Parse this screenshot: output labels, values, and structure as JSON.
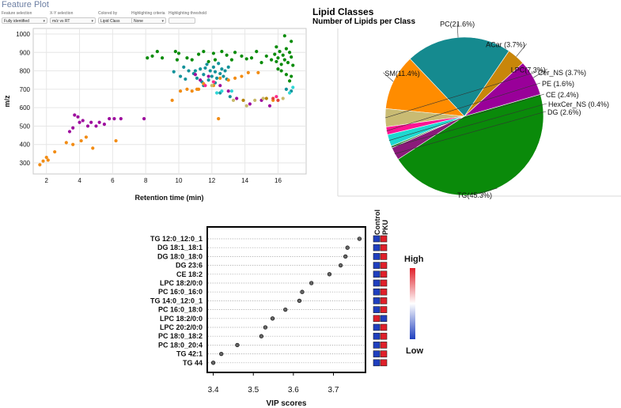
{
  "feature_plot": {
    "title": "Feature Plot",
    "controls": [
      {
        "label": "Feature selection",
        "value": "Fully identified"
      },
      {
        "label": "X-Y selection",
        "value": "m/z vs RT"
      },
      {
        "label": "Colored by",
        "value": "Lipid Class"
      },
      {
        "label": "Highlighting criteria",
        "value": "None"
      },
      {
        "label": "Highlighting threshold",
        "value": ""
      }
    ]
  },
  "chart_data": [
    {
      "type": "scatter",
      "title": "",
      "xlabel": "Retention time (min)",
      "ylabel": "m/z",
      "xlim": [
        1.2,
        17.7
      ],
      "ylim": [
        240,
        1030
      ],
      "xticks": [
        2,
        4,
        6,
        8,
        10,
        12,
        14,
        16
      ],
      "yticks": [
        300,
        400,
        500,
        600,
        700,
        800,
        900,
        1000
      ],
      "grid": true,
      "series": [
        {
          "name": "TG",
          "color": "#0a8c0a",
          "points": [
            [
              8.1,
              870
            ],
            [
              8.4,
              880
            ],
            [
              8.7,
              905
            ],
            [
              9.0,
              870
            ],
            [
              9.8,
              905
            ],
            [
              9.9,
              860
            ],
            [
              10.0,
              895
            ],
            [
              10.5,
              870
            ],
            [
              10.8,
              860
            ],
            [
              11.2,
              890
            ],
            [
              11.5,
              905
            ],
            [
              11.8,
              850
            ],
            [
              12.1,
              895
            ],
            [
              12.2,
              860
            ],
            [
              12.6,
              905
            ],
            [
              12.9,
              885
            ],
            [
              13.2,
              860
            ],
            [
              13.4,
              900
            ],
            [
              13.8,
              880
            ],
            [
              14.1,
              865
            ],
            [
              14.4,
              870
            ],
            [
              14.7,
              905
            ],
            [
              15.0,
              845
            ],
            [
              15.3,
              880
            ],
            [
              15.6,
              860
            ],
            [
              15.8,
              890
            ],
            [
              15.9,
              850
            ],
            [
              16.0,
              870
            ],
            [
              16.1,
              905
            ],
            [
              16.2,
              835
            ],
            [
              16.3,
              885
            ],
            [
              16.4,
              860
            ],
            [
              16.5,
              920
            ],
            [
              16.6,
              845
            ],
            [
              16.7,
              900
            ],
            [
              16.8,
              875
            ],
            [
              15.9,
              930
            ],
            [
              16.2,
              800
            ],
            [
              16.5,
              780
            ],
            [
              16.8,
              960
            ],
            [
              16.9,
              830
            ],
            [
              16.4,
              990
            ],
            [
              16.0,
              810
            ],
            [
              16.7,
              745
            ],
            [
              16.8,
              770
            ]
          ]
        },
        {
          "name": "PC",
          "color": "#13929a",
          "points": [
            [
              9.7,
              795
            ],
            [
              10.1,
              770
            ],
            [
              10.6,
              800
            ],
            [
              10.9,
              785
            ],
            [
              11.1,
              760
            ],
            [
              11.3,
              810
            ],
            [
              11.5,
              780
            ],
            [
              11.7,
              835
            ],
            [
              11.8,
              750
            ],
            [
              11.9,
              800
            ],
            [
              12.0,
              770
            ],
            [
              12.1,
              820
            ],
            [
              12.2,
              795
            ],
            [
              12.3,
              760
            ],
            [
              12.4,
              840
            ],
            [
              12.5,
              785
            ],
            [
              12.6,
              810
            ],
            [
              12.7,
              770
            ],
            [
              12.8,
              800
            ],
            [
              13.0,
              820
            ],
            [
              11.6,
              815
            ],
            [
              11.4,
              740
            ],
            [
              12.9,
              755
            ],
            [
              11.0,
              800
            ],
            [
              10.4,
              755
            ],
            [
              10.3,
              820
            ],
            [
              12.2,
              735
            ],
            [
              11.5,
              720
            ],
            [
              16.5,
              700
            ],
            [
              16.8,
              690
            ],
            [
              12.5,
              680
            ],
            [
              13.1,
              660
            ]
          ]
        },
        {
          "name": "SM",
          "color": "#f28c14",
          "points": [
            [
              1.6,
              290
            ],
            [
              1.8,
              310
            ],
            [
              2.0,
              330
            ],
            [
              2.1,
              315
            ],
            [
              2.5,
              360
            ],
            [
              3.2,
              410
            ],
            [
              3.6,
              400
            ],
            [
              4.1,
              420
            ],
            [
              4.4,
              440
            ],
            [
              4.8,
              380
            ],
            [
              6.2,
              420
            ],
            [
              9.6,
              640
            ],
            [
              10.1,
              690
            ],
            [
              10.5,
              700
            ],
            [
              10.8,
              690
            ],
            [
              11.2,
              700
            ],
            [
              11.5,
              730
            ],
            [
              12.1,
              720
            ],
            [
              12.5,
              760
            ],
            [
              13.0,
              750
            ],
            [
              13.4,
              760
            ],
            [
              13.8,
              770
            ],
            [
              14.2,
              790
            ],
            [
              14.8,
              790
            ],
            [
              12.4,
              540
            ],
            [
              15.7,
              640
            ],
            [
              11.1,
              700
            ]
          ]
        },
        {
          "name": "LPC",
          "color": "#9e0e9e",
          "points": [
            [
              3.4,
              470
            ],
            [
              3.6,
              490
            ],
            [
              3.7,
              560
            ],
            [
              3.9,
              550
            ],
            [
              4.0,
              520
            ],
            [
              4.2,
              530
            ],
            [
              4.5,
              500
            ],
            [
              4.7,
              520
            ],
            [
              5.0,
              500
            ],
            [
              5.2,
              520
            ],
            [
              5.5,
              510
            ],
            [
              5.8,
              540
            ],
            [
              6.1,
              540
            ],
            [
              6.5,
              540
            ],
            [
              7.9,
              540
            ],
            [
              11.0,
              780
            ],
            [
              11.3,
              750
            ],
            [
              12.5,
              720
            ],
            [
              13.0,
              690
            ],
            [
              13.5,
              650
            ],
            [
              14.3,
              620
            ],
            [
              15.5,
              610
            ],
            [
              11.8,
              770
            ],
            [
              15.0,
              640
            ]
          ]
        },
        {
          "name": "Cer_NS",
          "color": "#c8b96a",
          "points": [
            [
              13.3,
              640
            ],
            [
              14.6,
              640
            ],
            [
              15.1,
              650
            ],
            [
              16.3,
              650
            ],
            [
              12.0,
              720
            ],
            [
              14.1,
              610
            ]
          ]
        },
        {
          "name": "ACar",
          "color": "#b8860b",
          "points": [
            [
              13.9,
              640
            ],
            [
              15.3,
              650
            ]
          ]
        },
        {
          "name": "CE",
          "color": "#30d6d6",
          "points": [
            [
              12.3,
              680
            ],
            [
              12.6,
              690
            ],
            [
              16.7,
              680
            ],
            [
              16.9,
              710
            ],
            [
              13.2,
              690
            ]
          ]
        },
        {
          "name": "PE",
          "color": "#ff2a8a",
          "points": [
            [
              11.6,
              720
            ],
            [
              12.1,
              740
            ],
            [
              15.9,
              660
            ]
          ]
        },
        {
          "name": "HexCer_NS",
          "color": "#e5413a",
          "points": [
            [
              16.0,
              640
            ],
            [
              15.7,
              650
            ]
          ]
        }
      ]
    },
    {
      "type": "pie",
      "title": "Lipid Classes",
      "subtitle": "Number of Lipids per Class",
      "slices": [
        {
          "label": "TG(45.3%)",
          "value": 45.3,
          "color": "#0a8a0a",
          "place": "bottom"
        },
        {
          "label": "LPC(7.3%)",
          "value": 7.3,
          "color": "#990099",
          "place": "left"
        },
        {
          "label": "ACar (3.7%)",
          "value": 3.7,
          "color": "#c8860a",
          "place": "left"
        },
        {
          "label": "PC(21.6%)",
          "value": 21.6,
          "color": "#158a8f",
          "place": "top"
        },
        {
          "label": "SM(11.4%)",
          "value": 11.4,
          "color": "#ff8c00",
          "place": "top-right"
        },
        {
          "label": "Cer_NS (3.7%)",
          "value": 3.7,
          "color": "#c9bb73",
          "place": "right"
        },
        {
          "label": "PE (1.6%)",
          "value": 1.6,
          "color": "#ff1493",
          "place": "right"
        },
        {
          "label": "CE (2.4%)",
          "value": 2.4,
          "color": "#1fd8d0",
          "place": "right"
        },
        {
          "label": "HexCer_NS (0.4%)",
          "value": 0.4,
          "color": "#3c8c3c",
          "place": "right"
        },
        {
          "label": "DG (2.6%)",
          "value": 2.6,
          "color": "#8b1a7a",
          "place": "right"
        }
      ]
    },
    {
      "type": "scatter",
      "title": "",
      "xlabel": "VIP scores",
      "ylabel": "",
      "xlim": [
        3.385,
        3.78
      ],
      "xticks": [
        3.4,
        3.5,
        3.6,
        3.7
      ],
      "xtick_labels": [
        "3.4",
        "3.5",
        "3.6",
        "3.7"
      ],
      "grid": true,
      "features": [
        "TG 12:0_12:0_1",
        "DG 18:1_18:1",
        "DG 18:0_18:0",
        "DG 23:6",
        "CE 18:2",
        "LPC 18:2/0:0",
        "PC 16:0_16:0",
        "TG 14:0_12:0_1",
        "PC 16:0_18:0",
        "LPC 18:2/0:0",
        "LPC 20:2/0:0",
        "PC 18:0_18:2",
        "PC 18:0_20:4",
        "TG 42:1",
        "TG 44"
      ],
      "values": [
        3.765,
        3.735,
        3.73,
        3.718,
        3.69,
        3.645,
        3.622,
        3.615,
        3.58,
        3.548,
        3.53,
        3.52,
        3.46,
        3.42,
        3.4
      ],
      "heat_columns": [
        "Control",
        "PKU"
      ],
      "heat_values": [
        [
          "low",
          "high"
        ],
        [
          "low",
          "high"
        ],
        [
          "low",
          "high"
        ],
        [
          "low",
          "high"
        ],
        [
          "low",
          "high"
        ],
        [
          "low",
          "high"
        ],
        [
          "low",
          "high"
        ],
        [
          "low",
          "high"
        ],
        [
          "low",
          "high"
        ],
        [
          "high",
          "low"
        ],
        [
          "low",
          "high"
        ],
        [
          "low",
          "high"
        ],
        [
          "low",
          "high"
        ],
        [
          "low",
          "high"
        ],
        [
          "low",
          "high"
        ]
      ],
      "colorbar": {
        "high_label": "High",
        "low_label": "Low",
        "high_color": "#e0202a",
        "mid_color": "#ffffff",
        "low_color": "#1f3fbf"
      }
    }
  ]
}
